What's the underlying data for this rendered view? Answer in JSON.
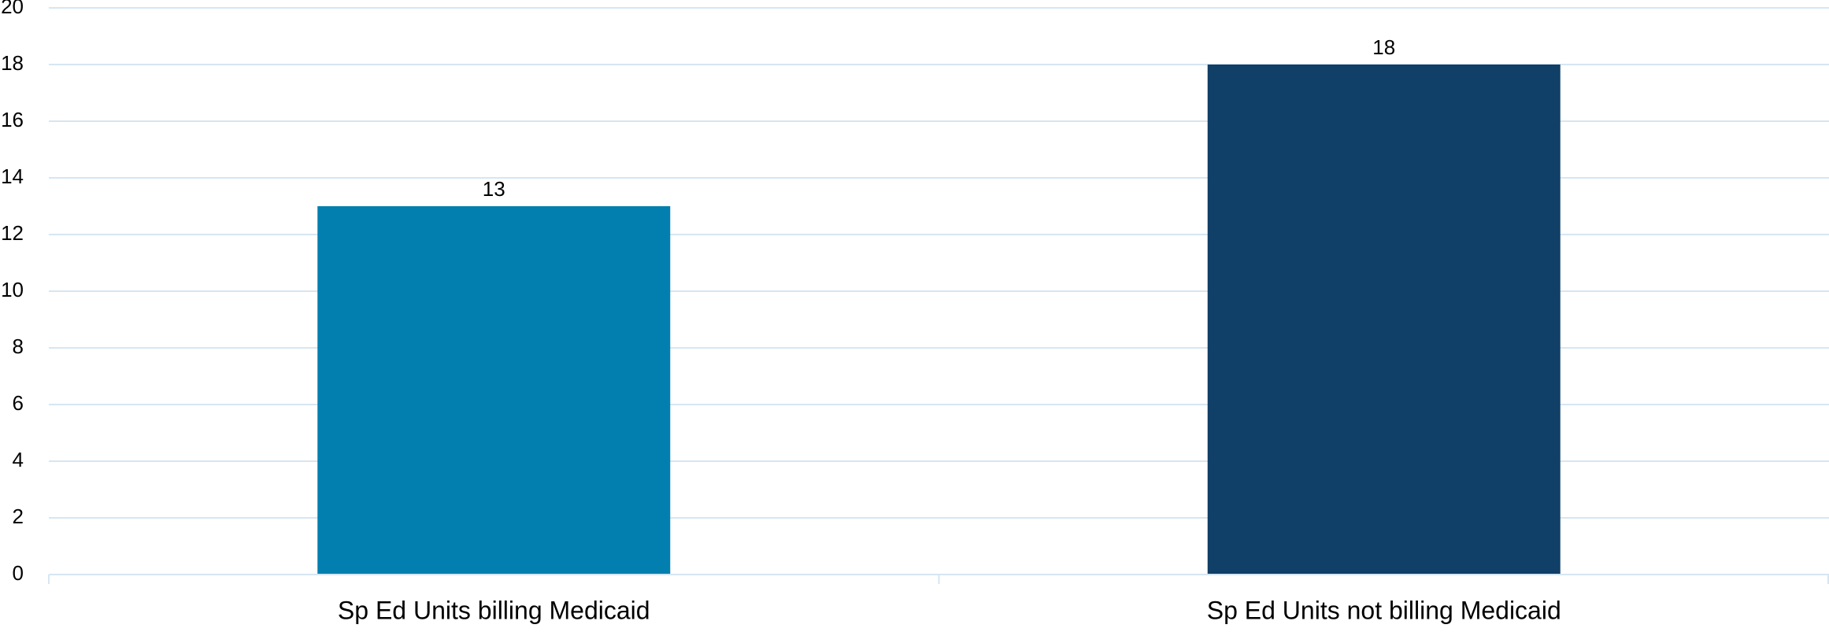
{
  "chart_data": {
    "type": "bar",
    "title": "",
    "xlabel": "",
    "ylabel": "",
    "categories": [
      "Sp Ed Units billing Medicaid",
      "Sp Ed Units not billing Medicaid"
    ],
    "values": [
      13,
      18
    ],
    "data_labels": [
      "13",
      "18"
    ],
    "bar_colors": [
      "#027FAE",
      "#103F67"
    ],
    "ylim": [
      0,
      20
    ],
    "yticks": [
      0,
      2,
      4,
      6,
      8,
      10,
      12,
      14,
      16,
      18,
      20
    ],
    "grid": true,
    "gridline_color": "#D6E6F2",
    "axis_color": "#D6E6F2",
    "legend": "none"
  }
}
